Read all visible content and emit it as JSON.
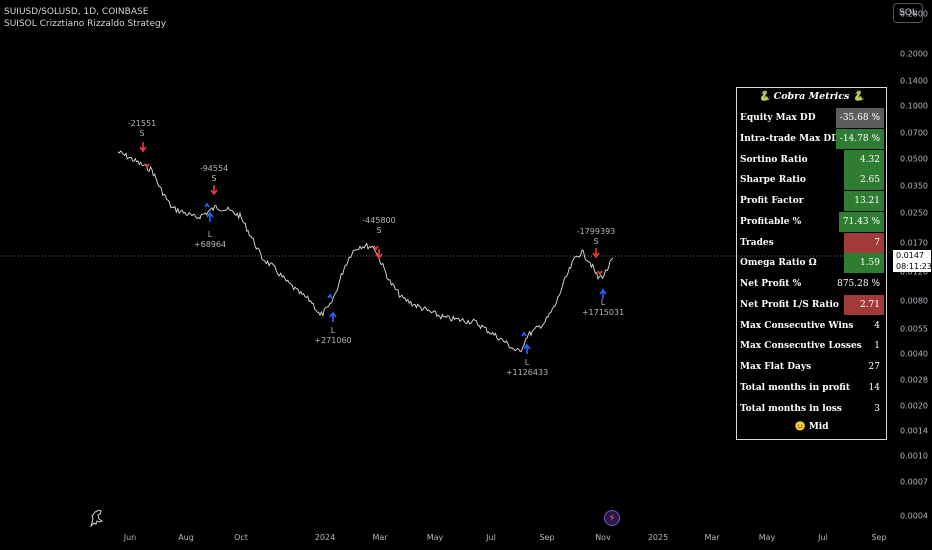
{
  "header": {
    "symbol_line": "SUIUSD/SOLUSD, 1D, COINBASE",
    "indicator_line": "SUISOL Crizztiano Rizzaldo Strategy"
  },
  "top_right_button": "SOL",
  "y_axis": {
    "ticks": [
      "0.2800",
      "0.2000",
      "0.1400",
      "0.1000",
      "0.0700",
      "0.0500",
      "0.0350",
      "0.0250",
      "0.0170",
      "0.0120",
      "0.0080",
      "0.0055",
      "0.0040",
      "0.0028",
      "0.0020",
      "0.0014",
      "0.0010",
      "0.0007",
      "0.0004"
    ],
    "current_price": "0.0147",
    "countdown": "08:11:23"
  },
  "x_axis": {
    "ticks": [
      "Jun",
      "Aug",
      "Oct",
      "2024",
      "Mar",
      "May",
      "Jul",
      "Sep",
      "Nov",
      "2025",
      "Mar",
      "May",
      "Jul",
      "Sep"
    ]
  },
  "signals": [
    {
      "value": "-21551",
      "side": "S"
    },
    {
      "value": "-94554",
      "side": "S"
    },
    {
      "value": "+68964",
      "side": "L"
    },
    {
      "value": "+271060",
      "side": "L"
    },
    {
      "value": "-445800",
      "side": "S"
    },
    {
      "value": "+1126433",
      "side": "L"
    },
    {
      "value": "-1799393",
      "side": "S"
    },
    {
      "value": "+1715031",
      "side": "L"
    }
  ],
  "metrics": {
    "title": "🐍 Cobra Metrics 🐍",
    "rows": [
      {
        "label": "Equity Max DD",
        "value": "-35.68 %",
        "bg": "#5d5d5d"
      },
      {
        "label": "Intra-trade Max DD",
        "value": "-14.78 %",
        "bg": "#2e7d32"
      },
      {
        "label": "Sortino Ratio",
        "value": "4.32",
        "bg": "#2e7d32"
      },
      {
        "label": "Sharpe Ratio",
        "value": "2.65",
        "bg": "#2e7d32"
      },
      {
        "label": "Profit Factor",
        "value": "13.21",
        "bg": "#2e7d32"
      },
      {
        "label": "Profitable %",
        "value": "71.43 %",
        "bg": "#2e7d32"
      },
      {
        "label": "Trades",
        "value": "7",
        "bg": "#a33a3a"
      },
      {
        "label": "Omega Ratio Ω",
        "value": "1.59",
        "bg": "#2e7d32"
      },
      {
        "label": "Net Profit %",
        "value": "875.28 %",
        "bg": ""
      },
      {
        "label": "Net Profit L/S Ratio",
        "value": "2.71",
        "bg": "#a33a3a"
      },
      {
        "label": "Max Consecutive Wins",
        "value": "4",
        "bg": ""
      },
      {
        "label": "Max Consecutive Losses",
        "value": "1",
        "bg": ""
      },
      {
        "label": "Max Flat Days",
        "value": "27",
        "bg": ""
      },
      {
        "label": "Total months in profit",
        "value": "14",
        "bg": ""
      },
      {
        "label": "Total months in loss",
        "value": "3",
        "bg": ""
      }
    ],
    "footer": "😐 Mid"
  },
  "colors": {
    "long_arrow": "#2962ff",
    "short_arrow": "#f23645",
    "price_line": "#e0e0e0"
  }
}
